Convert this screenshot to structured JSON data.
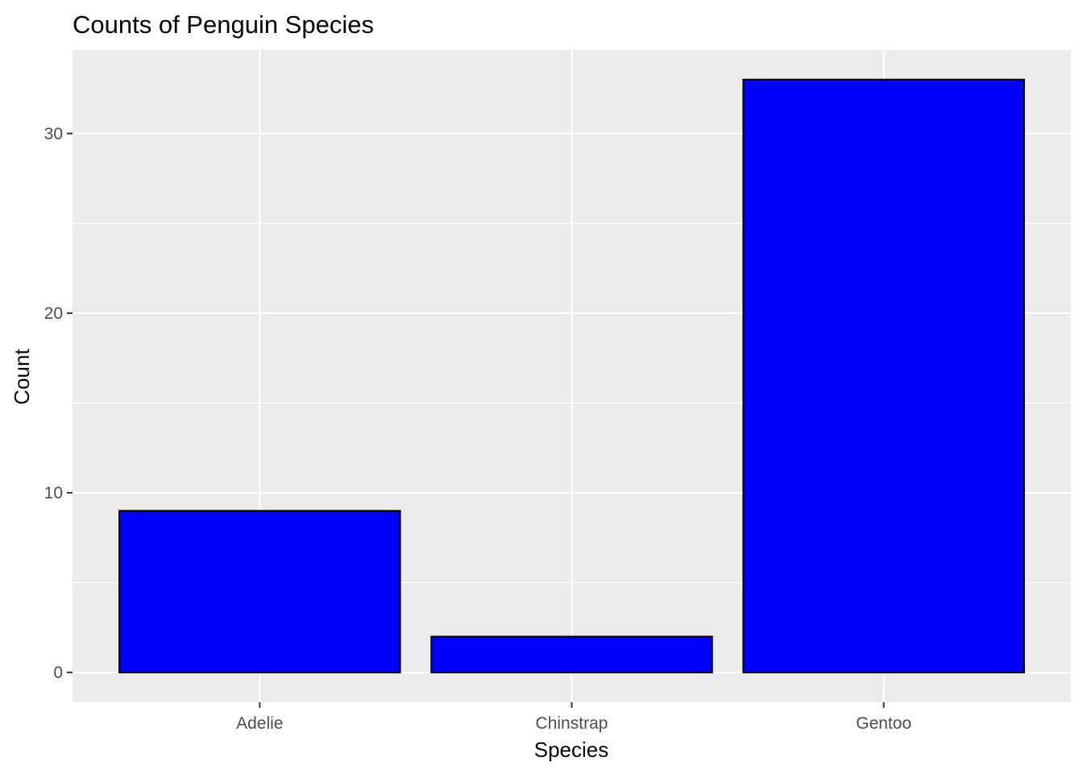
{
  "chart_data": {
    "type": "bar",
    "title": "Counts of Penguin Species",
    "xlabel": "Species",
    "ylabel": "Count",
    "categories": [
      "Adelie",
      "Chinstrap",
      "Gentoo"
    ],
    "values": [
      9,
      2,
      33
    ],
    "ylim": [
      -1.65,
      34.65
    ],
    "yticks": [
      0,
      10,
      20,
      30
    ],
    "grid": true,
    "bar_fill": "#0000ff",
    "bar_outline": "#000000",
    "panel_background": "#ebebeb",
    "gridline_color": "#ffffff"
  }
}
